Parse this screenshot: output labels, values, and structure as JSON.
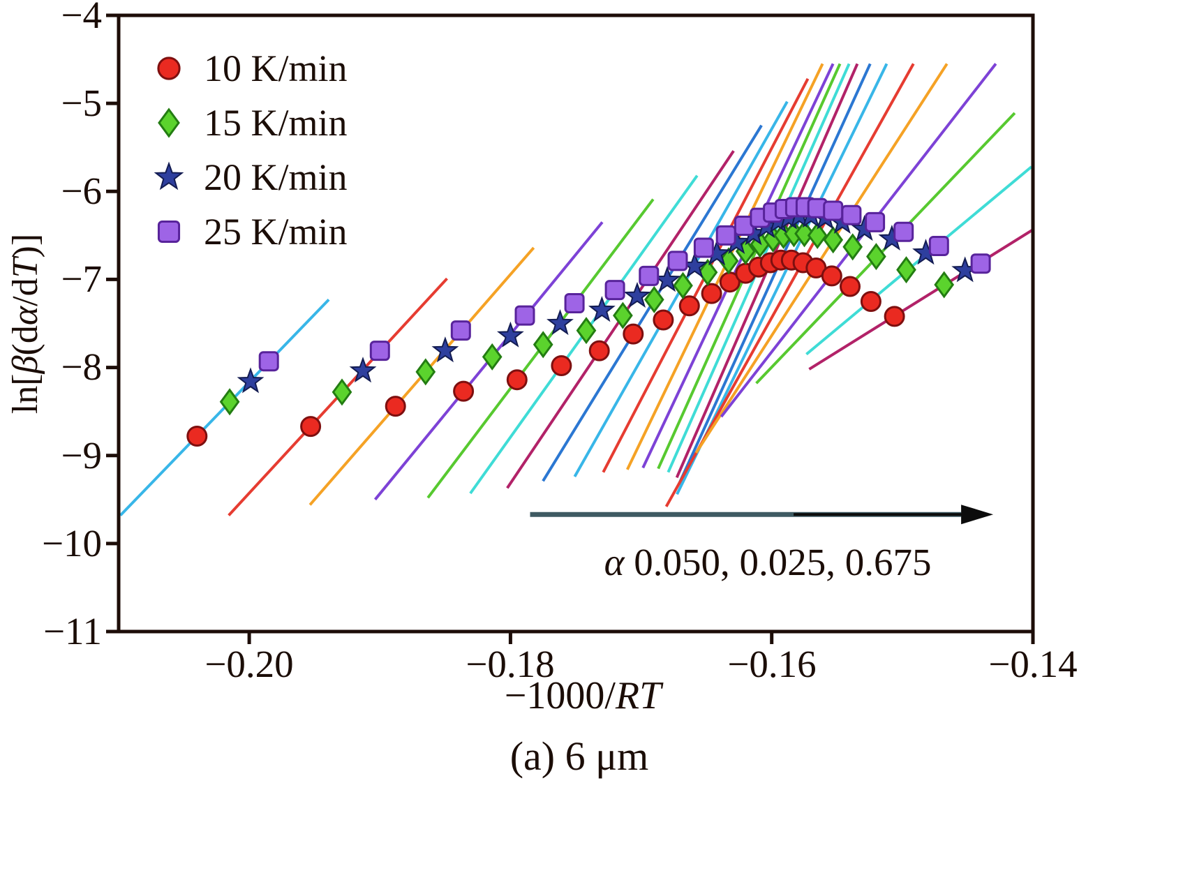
{
  "figure": {
    "caption": "(a) 6 μm",
    "legend": {
      "items": [
        {
          "label": "10 K/min",
          "marker": "circle",
          "fill": "#ea2a21",
          "edge": "#7e0f0f"
        },
        {
          "label": "15 K/min",
          "marker": "diamond",
          "fill": "#5bd32d",
          "edge": "#237d12"
        },
        {
          "label": "20 K/min",
          "marker": "star",
          "fill": "#2e3f9e",
          "edge": "#131c52"
        },
        {
          "label": "25 K/min",
          "marker": "square",
          "fill": "#9e64e6",
          "edge": "#58239b"
        }
      ]
    },
    "frame_color": "#1d0d08"
  },
  "chart_data": {
    "type": "scatter",
    "title": "",
    "xlabel": {
      "p0": "−1000/",
      "p1": "RT"
    },
    "ylabel": {
      "p0": "ln[",
      "p1": "β",
      "p2": "(d",
      "p3": "α",
      "p4": "/d",
      "p5": "T",
      "p6": ")]"
    },
    "xlim": [
      -0.21,
      -0.14
    ],
    "ylim": [
      -11,
      -4
    ],
    "grid": false,
    "legend_position": "upper-left",
    "x_ticks": [
      {
        "value": -0.2,
        "label": "−0.20"
      },
      {
        "value": -0.18,
        "label": "−0.18"
      },
      {
        "value": -0.16,
        "label": "−0.16"
      },
      {
        "value": -0.14,
        "label": "−0.14"
      }
    ],
    "y_ticks": [
      {
        "value": -4,
        "label": "−4"
      },
      {
        "value": -5,
        "label": "−5"
      },
      {
        "value": -6,
        "label": "−6"
      },
      {
        "value": -7,
        "label": "−7"
      },
      {
        "value": -8,
        "label": "−8"
      },
      {
        "value": -9,
        "label": "−9"
      },
      {
        "value": -10,
        "label": "−10"
      },
      {
        "value": -11,
        "label": "−11"
      }
    ],
    "series": [
      {
        "name": "10 K/min",
        "marker": "circle",
        "fill": "#ea2a21",
        "edge": "#7e0f0f",
        "x": [
          -0.204,
          -0.1953,
          -0.1888,
          -0.1836,
          -0.1795,
          -0.1761,
          -0.1732,
          -0.1706,
          -0.1683,
          -0.1663,
          -0.1646,
          -0.1632,
          -0.162,
          -0.161,
          -0.1601,
          -0.1593,
          -0.1585,
          -0.1576,
          -0.1566,
          -0.1554,
          -0.154,
          -0.1524,
          -0.1506
        ],
        "y": [
          -8.78,
          -8.67,
          -8.44,
          -8.27,
          -8.14,
          -7.98,
          -7.81,
          -7.62,
          -7.46,
          -7.3,
          -7.16,
          -7.03,
          -6.93,
          -6.86,
          -6.81,
          -6.78,
          -6.78,
          -6.81,
          -6.87,
          -6.96,
          -7.08,
          -7.25,
          -7.42
        ]
      },
      {
        "name": "15 K/min",
        "marker": "diamond",
        "fill": "#5bd32d",
        "edge": "#237d12",
        "x": [
          -0.2015,
          -0.1929,
          -0.1865,
          -0.1814,
          -0.1775,
          -0.1742,
          -0.1714,
          -0.169,
          -0.1668,
          -0.1649,
          -0.1633,
          -0.162,
          -0.1609,
          -0.1599,
          -0.1591,
          -0.1583,
          -0.1575,
          -0.1565,
          -0.1553,
          -0.1538,
          -0.152,
          -0.1497,
          -0.1468
        ],
        "y": [
          -8.39,
          -8.28,
          -8.05,
          -7.88,
          -7.74,
          -7.58,
          -7.41,
          -7.23,
          -7.07,
          -6.92,
          -6.79,
          -6.68,
          -6.6,
          -6.54,
          -6.5,
          -6.48,
          -6.48,
          -6.5,
          -6.55,
          -6.63,
          -6.74,
          -6.89,
          -7.06
        ]
      },
      {
        "name": "20 K/min",
        "marker": "star",
        "fill": "#2e3f9e",
        "edge": "#131c52",
        "x": [
          -0.1999,
          -0.1913,
          -0.185,
          -0.18,
          -0.1762,
          -0.173,
          -0.1703,
          -0.168,
          -0.1659,
          -0.1642,
          -0.1627,
          -0.1614,
          -0.1604,
          -0.1595,
          -0.1587,
          -0.1579,
          -0.157,
          -0.1559,
          -0.1546,
          -0.1529,
          -0.1508,
          -0.1482,
          -0.1452
        ],
        "y": [
          -8.16,
          -8.04,
          -7.81,
          -7.64,
          -7.5,
          -7.35,
          -7.19,
          -7.01,
          -6.85,
          -6.71,
          -6.58,
          -6.48,
          -6.4,
          -6.34,
          -6.3,
          -6.28,
          -6.28,
          -6.3,
          -6.35,
          -6.43,
          -6.54,
          -6.7,
          -6.9
        ]
      },
      {
        "name": "25 K/min",
        "marker": "square",
        "fill": "#9e64e6",
        "edge": "#58239b",
        "x": [
          -0.1985,
          -0.19,
          -0.1838,
          -0.1789,
          -0.1751,
          -0.172,
          -0.1694,
          -0.1672,
          -0.1652,
          -0.1635,
          -0.1621,
          -0.1609,
          -0.1599,
          -0.159,
          -0.1582,
          -0.1574,
          -0.1565,
          -0.1553,
          -0.1539,
          -0.1521,
          -0.1499,
          -0.1472,
          -0.144
        ],
        "y": [
          -7.93,
          -7.81,
          -7.58,
          -7.41,
          -7.27,
          -7.12,
          -6.96,
          -6.79,
          -6.64,
          -6.5,
          -6.39,
          -6.3,
          -6.24,
          -6.2,
          -6.18,
          -6.18,
          -6.19,
          -6.22,
          -6.27,
          -6.35,
          -6.46,
          -6.62,
          -6.82
        ]
      }
    ],
    "fit_lines": {
      "description": "isoconversional straight-line fits, one line per conversion value α",
      "colors": [
        "#38b6e8",
        "#e63c31",
        "#f5a225",
        "#7d42d6",
        "#57c930",
        "#3fdcd6",
        "#b22268",
        "#2b77d2"
      ]
    },
    "annotation": {
      "alpha": "α",
      "values": " 0.050, 0.025, 0.675",
      "arrow": {
        "x1": -0.1785,
        "x2": -0.1455,
        "y": -9.67
      },
      "shaft_color": "#3e5a62",
      "head_color": "#0c0c0c"
    }
  }
}
